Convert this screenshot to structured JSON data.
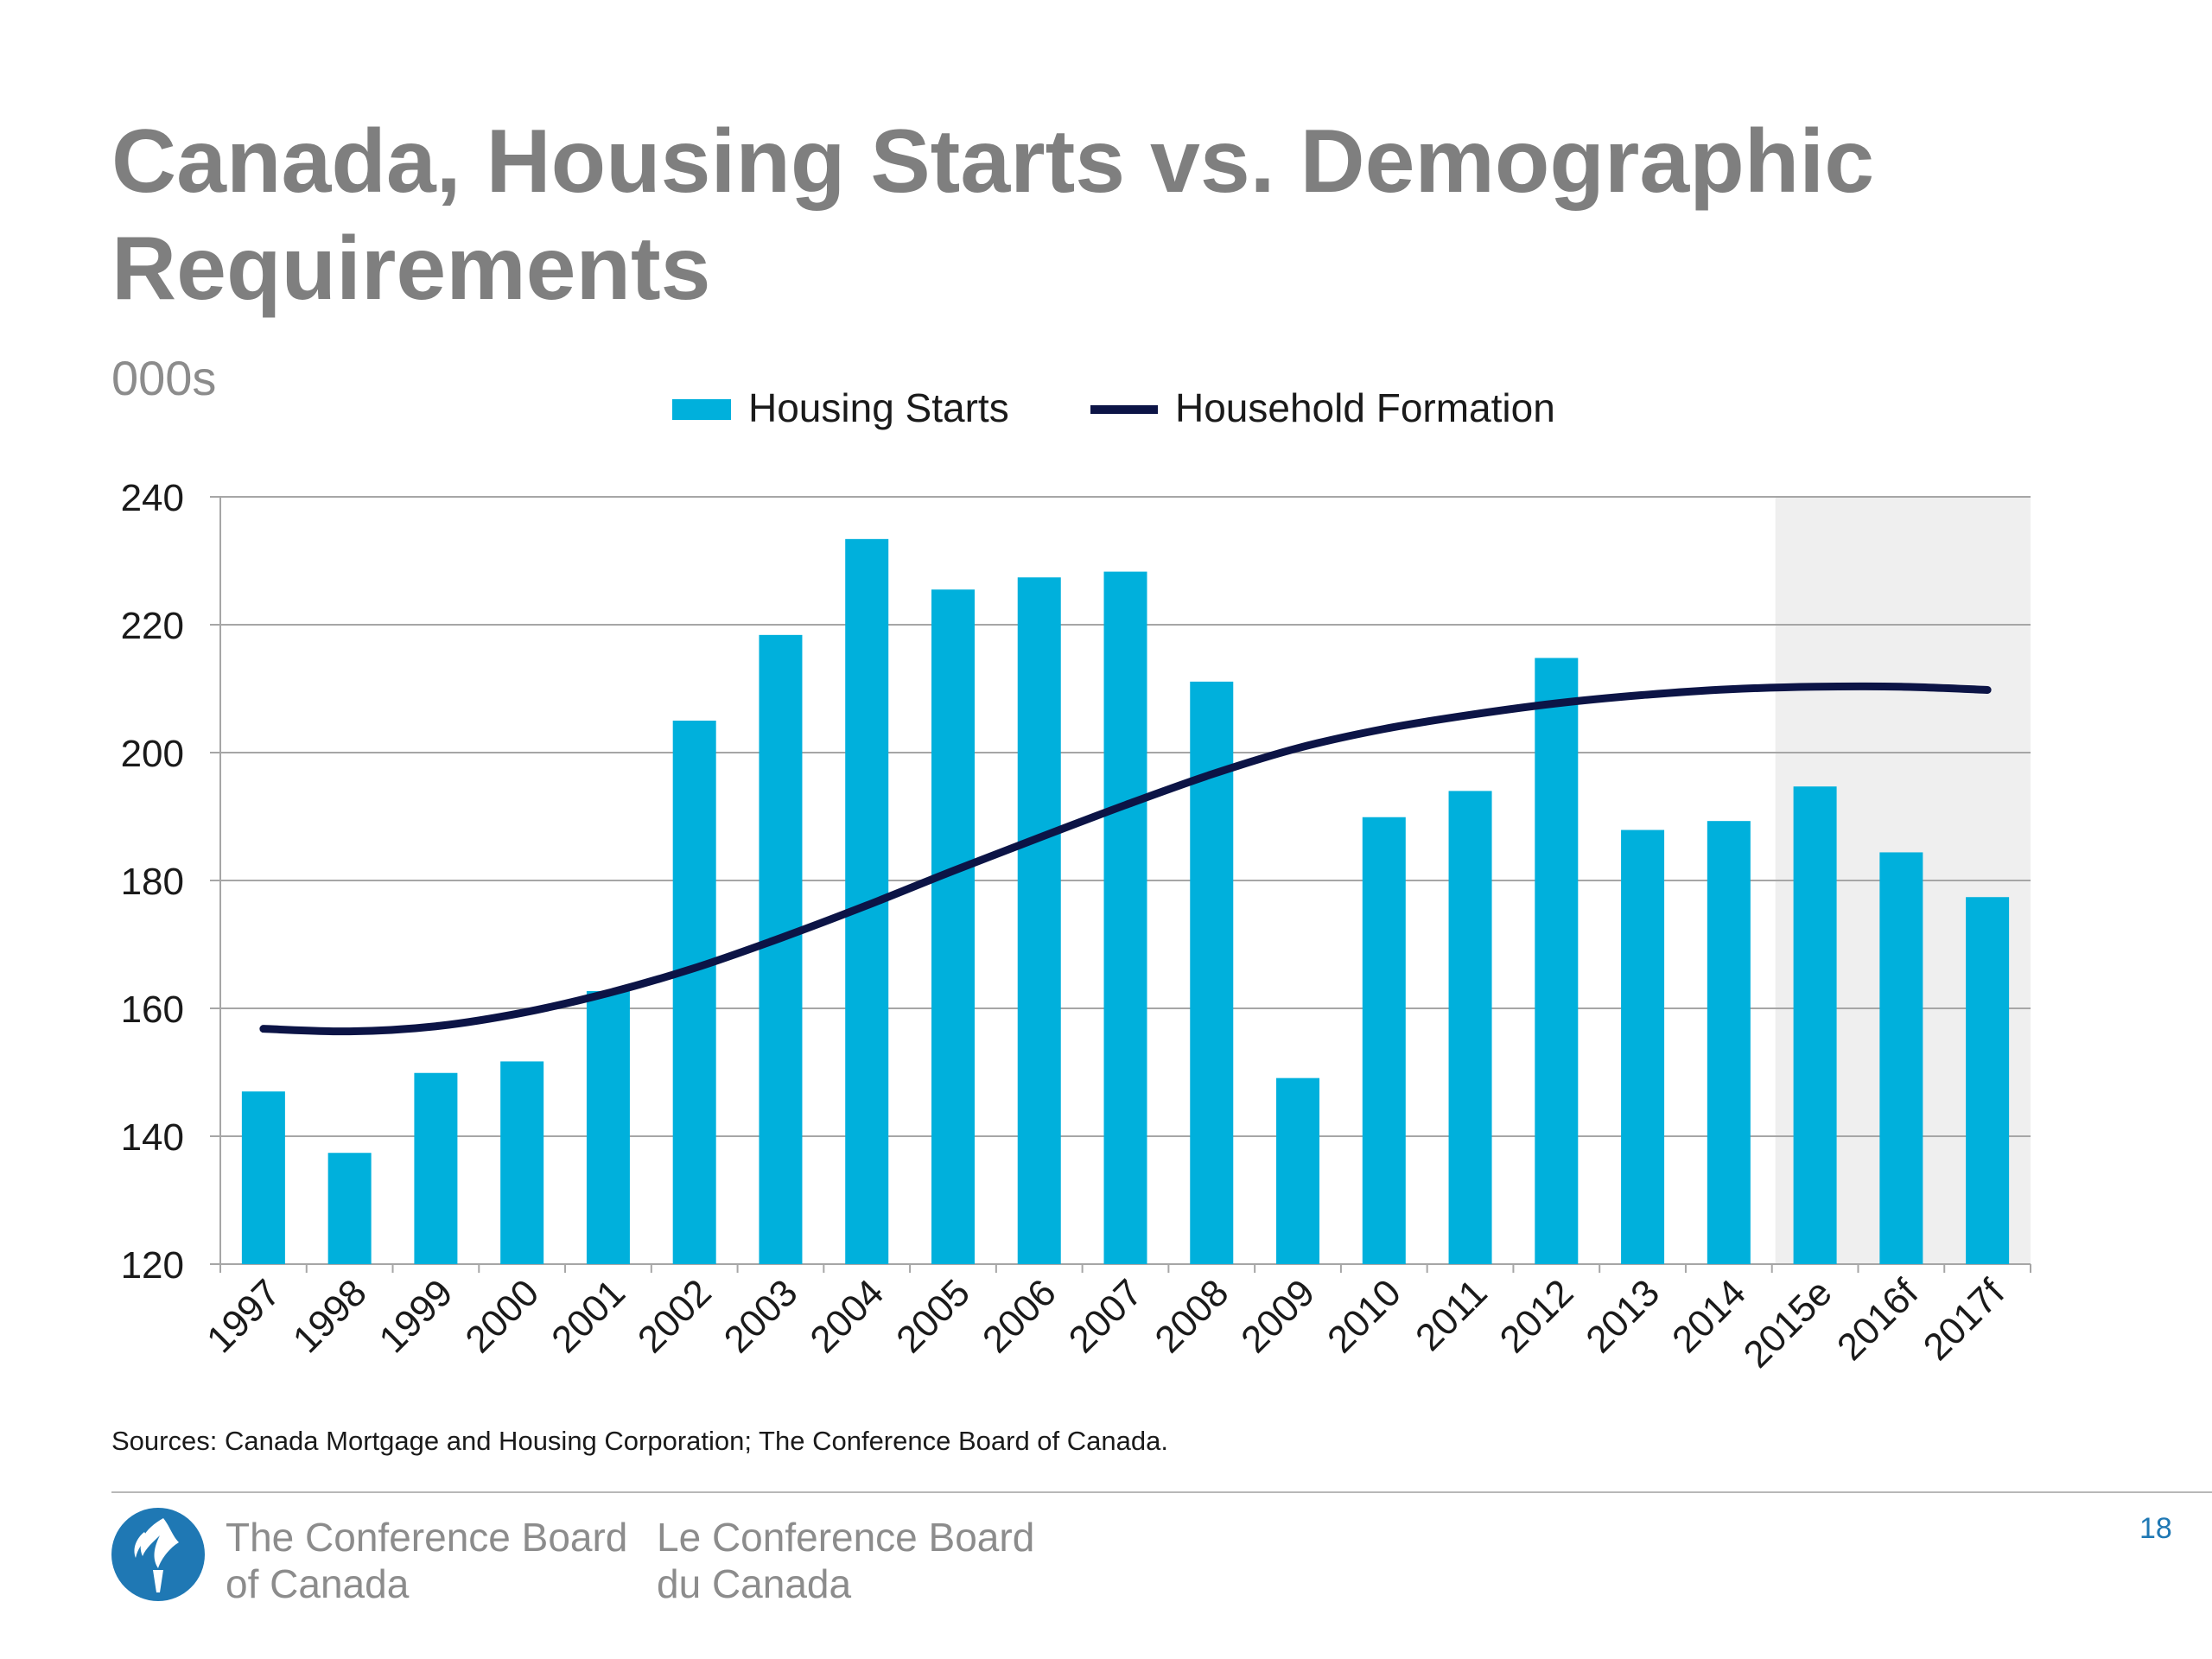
{
  "slide": {
    "title": "Canada, Housing Starts vs. Demographic Requirements",
    "unit_label": "000s",
    "sources": "Sources: Canada Mortgage and Housing Corporation; The Conference Board of Canada.",
    "org_en": [
      "The Conference Board",
      "of Canada"
    ],
    "org_fr": [
      "Le Conference Board",
      "du Canada"
    ],
    "page_number": "18",
    "logo_icon": "conference-board-torch-logo"
  },
  "colors": {
    "title": "#7f7f7f",
    "bars": "#00b0dc",
    "line": "#0c1446",
    "grid": "#a6a6a6",
    "forecast_shade": "#efefef",
    "page_number": "#1f78b4",
    "logo": "#1f78b4"
  },
  "chart_data": {
    "type": "bar",
    "title": "Canada, Housing Starts vs. Demographic Requirements",
    "ylabel": "000s",
    "xlabel": "",
    "ylim": [
      120,
      240
    ],
    "yticks": [
      120,
      140,
      160,
      180,
      200,
      220,
      240
    ],
    "grid": true,
    "legend_position": "top-center",
    "forecast_shaded_categories": [
      "2015e",
      "2016f",
      "2017f"
    ],
    "categories": [
      "1997",
      "1998",
      "1999",
      "2000",
      "2001",
      "2002",
      "2003",
      "2004",
      "2005",
      "2006",
      "2007",
      "2008",
      "2009",
      "2010",
      "2011",
      "2012",
      "2013",
      "2014",
      "2015e",
      "2016f",
      "2017f"
    ],
    "series": [
      {
        "name": "Housing Starts",
        "type": "bar",
        "values": [
          147.0,
          137.4,
          149.9,
          151.7,
          162.7,
          205.0,
          218.4,
          233.4,
          225.5,
          227.4,
          228.3,
          211.1,
          149.1,
          189.9,
          194.0,
          214.8,
          187.9,
          189.3,
          194.7,
          184.4,
          177.4
        ]
      },
      {
        "name": "Household Formation",
        "type": "line",
        "values": [
          156.8,
          156.4,
          157.2,
          159.3,
          162.4,
          166.3,
          171.0,
          176.1,
          181.5,
          186.7,
          191.8,
          196.6,
          200.7,
          203.7,
          205.9,
          207.7,
          209.0,
          209.9,
          210.3,
          210.3,
          209.8
        ]
      }
    ]
  }
}
